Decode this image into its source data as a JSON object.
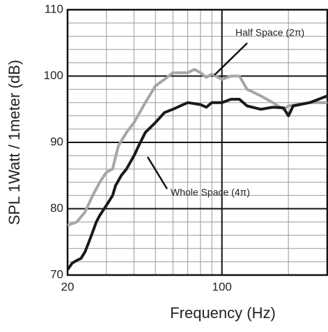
{
  "chart_data": {
    "type": "line",
    "xlabel": "Frequency (Hz)",
    "ylabel": "SPL 1Watt / 1meter (dB)",
    "xscale": "log",
    "xlim": [
      20,
      300
    ],
    "ylim": [
      70,
      110
    ],
    "xticks": [
      20,
      100
    ],
    "yticks": [
      70,
      80,
      90,
      100,
      110
    ],
    "xgrid_minor": [
      30,
      40,
      50,
      60,
      70,
      80,
      90,
      200
    ],
    "ygrid_minor": [
      72,
      74,
      76,
      78,
      82,
      84,
      86,
      88,
      92,
      94,
      96,
      98,
      102,
      104,
      106,
      108
    ],
    "grid": true,
    "series": [
      {
        "name": "Half Space (2π)",
        "color": "#a6a6a6",
        "x": [
          20,
          22,
          24,
          26,
          28,
          30,
          32,
          34,
          37,
          40,
          45,
          50,
          55,
          60,
          70,
          75,
          80,
          85,
          90,
          100,
          110,
          120,
          130,
          140,
          150,
          170,
          190,
          200,
          250,
          300
        ],
        "values": [
          77.5,
          78,
          79.5,
          82,
          84,
          85.5,
          86,
          89.5,
          91.5,
          93,
          96,
          98.5,
          99.5,
          100.5,
          100.5,
          101,
          100.5,
          99.8,
          100.3,
          99.5,
          100,
          100,
          98,
          97.5,
          97,
          96,
          95,
          95.5,
          96,
          96
        ]
      },
      {
        "name": "Whole Space (4π)",
        "color": "#1a1a1a",
        "x": [
          20,
          21,
          22,
          23,
          24,
          25,
          26,
          27,
          28,
          30,
          32,
          33,
          35,
          37,
          40,
          42,
          45,
          50,
          55,
          60,
          70,
          80,
          85,
          90,
          100,
          110,
          120,
          130,
          150,
          170,
          190,
          200,
          210,
          250,
          300
        ],
        "values": [
          70.8,
          71.8,
          72.2,
          72.5,
          73.5,
          75,
          76.5,
          78,
          79,
          80.5,
          82,
          83.5,
          85,
          86,
          88,
          89.5,
          91.5,
          93,
          94.5,
          95,
          96,
          95.7,
          95.3,
          96,
          96,
          96.5,
          96.5,
          95.5,
          95,
          95.3,
          95.2,
          94,
          95.5,
          96,
          97
        ]
      }
    ]
  }
}
